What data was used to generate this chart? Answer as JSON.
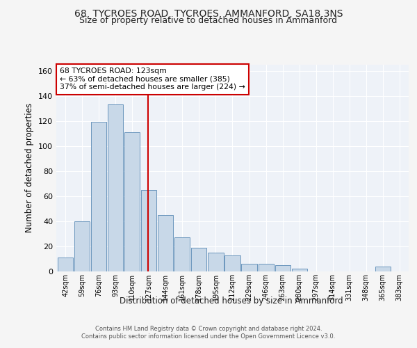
{
  "title_line1": "68, TYCROES ROAD, TYCROES, AMMANFORD, SA18 3NS",
  "title_line2": "Size of property relative to detached houses in Ammanford",
  "xlabel": "Distribution of detached houses by size in Ammanford",
  "ylabel": "Number of detached properties",
  "footer_line1": "Contains HM Land Registry data © Crown copyright and database right 2024.",
  "footer_line2": "Contains public sector information licensed under the Open Government Licence v3.0.",
  "categories": [
    "42sqm",
    "59sqm",
    "76sqm",
    "93sqm",
    "110sqm",
    "127sqm",
    "144sqm",
    "161sqm",
    "178sqm",
    "195sqm",
    "212sqm",
    "229sqm",
    "246sqm",
    "263sqm",
    "280sqm",
    "297sqm",
    "314sqm",
    "331sqm",
    "348sqm",
    "365sqm",
    "383sqm"
  ],
  "values": [
    11,
    40,
    119,
    133,
    111,
    65,
    45,
    27,
    19,
    15,
    13,
    6,
    6,
    5,
    2,
    0,
    0,
    0,
    0,
    4,
    0
  ],
  "bar_color": "#c8d8e8",
  "bar_edge_color": "#5a8ab5",
  "vline_x": 4.95,
  "vline_color": "#cc0000",
  "annotation_text": "68 TYCROES ROAD: 123sqm\n← 63% of detached houses are smaller (385)\n37% of semi-detached houses are larger (224) →",
  "annotation_box_color": "#cc0000",
  "annotation_text_color": "#000000",
  "ylim": [
    0,
    165
  ],
  "yticks": [
    0,
    20,
    40,
    60,
    80,
    100,
    120,
    140,
    160
  ],
  "bg_color": "#eef2f8",
  "grid_color": "#ffffff",
  "fig_bg_color": "#f5f5f5",
  "title_fontsize": 10,
  "subtitle_fontsize": 9,
  "ylabel_text": "Number of detached properties"
}
